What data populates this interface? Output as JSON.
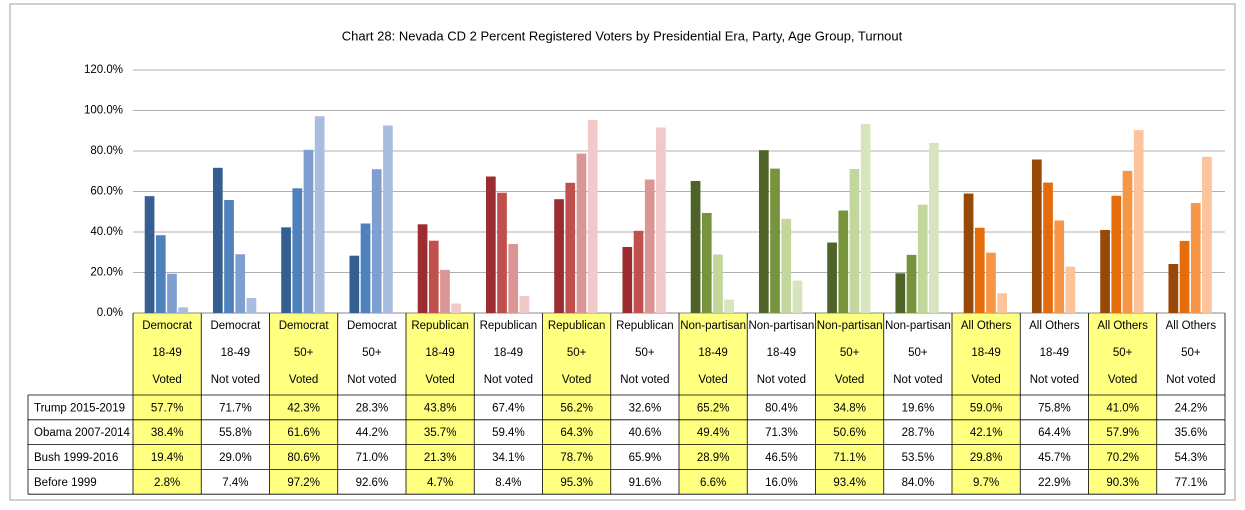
{
  "chart_data": {
    "type": "bar",
    "title": "Chart 28: Nevada CD 2 Percent Registered Voters by Presidential Era, Party, Age Group, Turnout",
    "categories": [
      [
        "Democrat",
        "18-49",
        "Voted"
      ],
      [
        "Democrat",
        "18-49",
        "Not voted"
      ],
      [
        "Democrat",
        "50+",
        "Voted"
      ],
      [
        "Democrat",
        "50+",
        "Not voted"
      ],
      [
        "Republican",
        "18-49",
        "Voted"
      ],
      [
        "Republican",
        "18-49",
        "Not voted"
      ],
      [
        "Republican",
        "50+",
        "Voted"
      ],
      [
        "Republican",
        "50+",
        "Not voted"
      ],
      [
        "Non-partisan",
        "18-49",
        "Voted"
      ],
      [
        "Non-partisan",
        "18-49",
        "Not voted"
      ],
      [
        "Non-partisan",
        "50+",
        "Voted"
      ],
      [
        "Non-partisan",
        "50+",
        "Not voted"
      ],
      [
        "All Others",
        "18-49",
        "Voted"
      ],
      [
        "All Others",
        "18-49",
        "Not voted"
      ],
      [
        "All Others",
        "50+",
        "Voted"
      ],
      [
        "All Others",
        "50+",
        "Not voted"
      ]
    ],
    "highlight": [
      true,
      false,
      true,
      false,
      true,
      false,
      true,
      false,
      true,
      false,
      true,
      false,
      true,
      false,
      true,
      false
    ],
    "highlight_color": "#ffff80",
    "series": [
      {
        "name": "Trump 2015-2019",
        "colors": [
          "#365f91",
          "#365f91",
          "#365f91",
          "#365f91",
          "#9b2c2f",
          "#9b2c2f",
          "#9b2c2f",
          "#9b2c2f",
          "#4f6228",
          "#4f6228",
          "#4f6228",
          "#4f6228",
          "#984807",
          "#984807",
          "#984807",
          "#984807"
        ],
        "values": [
          57.7,
          71.7,
          42.3,
          28.3,
          43.8,
          67.4,
          56.2,
          32.6,
          65.2,
          80.4,
          34.8,
          19.6,
          59.0,
          75.8,
          41.0,
          24.2
        ],
        "value_labels": [
          "57.7%",
          "71.7%",
          "42.3%",
          "28.3%",
          "43.8%",
          "67.4%",
          "56.2%",
          "32.6%",
          "65.2%",
          "80.4%",
          "34.8%",
          "19.6%",
          "59.0%",
          "75.8%",
          "41.0%",
          "24.2%"
        ]
      },
      {
        "name": "Obama 2007-2014",
        "colors": [
          "#4f81bd",
          "#4f81bd",
          "#4f81bd",
          "#4f81bd",
          "#c0504d",
          "#c0504d",
          "#c0504d",
          "#c0504d",
          "#77933c",
          "#77933c",
          "#77933c",
          "#77933c",
          "#e46c0a",
          "#e46c0a",
          "#e46c0a",
          "#e46c0a"
        ],
        "values": [
          38.4,
          55.8,
          61.6,
          44.2,
          35.7,
          59.4,
          64.3,
          40.6,
          49.4,
          71.3,
          50.6,
          28.7,
          42.1,
          64.4,
          57.9,
          35.6
        ],
        "value_labels": [
          "38.4%",
          "55.8%",
          "61.6%",
          "44.2%",
          "35.7%",
          "59.4%",
          "64.3%",
          "40.6%",
          "49.4%",
          "71.3%",
          "50.6%",
          "28.7%",
          "42.1%",
          "64.4%",
          "57.9%",
          "35.6%"
        ]
      },
      {
        "name": "Bush 1999-2016",
        "colors": [
          "#7f9fd0",
          "#7f9fd0",
          "#7f9fd0",
          "#7f9fd0",
          "#d99694",
          "#d99694",
          "#d99694",
          "#d99694",
          "#c3d69b",
          "#c3d69b",
          "#c3d69b",
          "#c3d69b",
          "#f79646",
          "#f79646",
          "#f79646",
          "#f79646"
        ],
        "values": [
          19.4,
          29.0,
          80.6,
          71.0,
          21.3,
          34.1,
          78.7,
          65.9,
          28.9,
          46.5,
          71.1,
          53.5,
          29.8,
          45.7,
          70.2,
          54.3
        ],
        "value_labels": [
          "19.4%",
          "29.0%",
          "80.6%",
          "71.0%",
          "21.3%",
          "34.1%",
          "78.7%",
          "65.9%",
          "28.9%",
          "46.5%",
          "71.1%",
          "53.5%",
          "29.8%",
          "45.7%",
          "70.2%",
          "54.3%"
        ]
      },
      {
        "name": "Before 1999",
        "colors": [
          "#a9bde0",
          "#a9bde0",
          "#a9bde0",
          "#a9bde0",
          "#f2c9c9",
          "#f2c9c9",
          "#f2c9c9",
          "#f2c9c9",
          "#d7e4bd",
          "#d7e4bd",
          "#d7e4bd",
          "#d7e4bd",
          "#fbc49a",
          "#fbc49a",
          "#fbc49a",
          "#fbc49a"
        ],
        "values": [
          2.8,
          7.4,
          97.2,
          92.6,
          4.7,
          8.4,
          95.3,
          91.6,
          6.6,
          16.0,
          93.4,
          84.0,
          9.7,
          22.9,
          90.3,
          77.1
        ],
        "value_labels": [
          "2.8%",
          "7.4%",
          "97.2%",
          "92.6%",
          "4.7%",
          "8.4%",
          "95.3%",
          "91.6%",
          "6.6%",
          "16.0%",
          "93.4%",
          "84.0%",
          "9.7%",
          "22.9%",
          "90.3%",
          "77.1%"
        ]
      }
    ],
    "ylim": [
      0,
      120
    ],
    "yticks": [
      {
        "value": 0,
        "label": "0.0%"
      },
      {
        "value": 20,
        "label": "20.0%"
      },
      {
        "value": 40,
        "label": "40.0%"
      },
      {
        "value": 60,
        "label": "60.0%"
      },
      {
        "value": 80,
        "label": "80.0%"
      },
      {
        "value": 100,
        "label": "100.0%"
      },
      {
        "value": 120,
        "label": "120.0%"
      }
    ],
    "grid": true
  }
}
